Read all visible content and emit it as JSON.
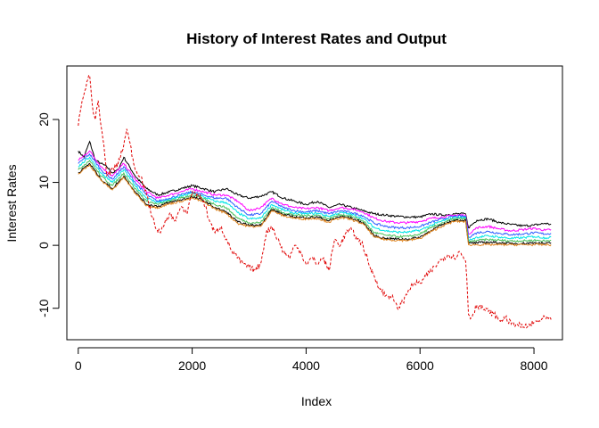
{
  "chart_data": {
    "type": "line",
    "title": "History of Interest Rates and Output",
    "xlabel": "Index",
    "ylabel": "Interest Rates",
    "xlim": [
      -200,
      8500
    ],
    "ylim": [
      -15,
      28.5
    ],
    "x_ticks": [
      0,
      2000,
      4000,
      6000,
      8000
    ],
    "y_ticks": [
      -10,
      0,
      10,
      20
    ],
    "x_tick_labels": [
      "0",
      "2000",
      "4000",
      "6000",
      "8000"
    ],
    "y_tick_labels": [
      "-10",
      "0",
      "10",
      "20"
    ],
    "grid": false,
    "legend": "none",
    "series": [
      {
        "color": "#000000",
        "style": "solid",
        "x": [
          0,
          100,
          200,
          300,
          400,
          500,
          600,
          700,
          800,
          900,
          1000,
          1200,
          1400,
          1600,
          1800,
          2000,
          2200,
          2400,
          2600,
          2800,
          3000,
          3200,
          3400,
          3600,
          3800,
          4000,
          4200,
          4400,
          4600,
          4800,
          5000,
          5200,
          5400,
          5600,
          5800,
          6000,
          6200,
          6400,
          6600,
          6800,
          6850,
          7000,
          7200,
          7400,
          7600,
          7800,
          8000,
          8200,
          8300
        ],
        "y": [
          15,
          14,
          16.5,
          13.5,
          13,
          12.5,
          11.5,
          12,
          14,
          12.5,
          11,
          9,
          8,
          8.5,
          9,
          9.5,
          9,
          8.5,
          9,
          8,
          7.5,
          7.8,
          8.5,
          7.5,
          7,
          6.5,
          7,
          6,
          6.5,
          6,
          5.5,
          5,
          4.8,
          4.6,
          4.5,
          4.5,
          5,
          4.8,
          5,
          5,
          2.8,
          4,
          4.2,
          3.6,
          3.3,
          3.1,
          3.2,
          3.5,
          3.3
        ]
      },
      {
        "color": "#ff00ff",
        "style": "solid",
        "x": [
          0,
          200,
          400,
          600,
          800,
          1000,
          1200,
          1400,
          1600,
          1800,
          2000,
          2200,
          2400,
          2600,
          2800,
          3000,
          3200,
          3400,
          3600,
          3800,
          4000,
          4200,
          4400,
          4600,
          4800,
          5000,
          5200,
          5400,
          5600,
          5800,
          6000,
          6200,
          6400,
          6600,
          6800,
          6850,
          7000,
          7200,
          7400,
          7600,
          7800,
          8000,
          8200,
          8300
        ],
        "y": [
          13.5,
          15,
          12.5,
          11,
          13,
          10.5,
          8.5,
          7.5,
          8,
          8.5,
          9,
          8.5,
          8,
          8,
          7,
          5.5,
          6,
          7.5,
          6.5,
          6,
          5.8,
          6,
          5.5,
          6,
          5.8,
          5.3,
          4.3,
          3.8,
          3.6,
          3.6,
          3.8,
          4.3,
          4.5,
          4.8,
          4.8,
          1.8,
          2.8,
          3,
          2.6,
          2.3,
          2.5,
          2.7,
          2.4,
          2.5
        ]
      },
      {
        "color": "#2f5dff",
        "style": "solid",
        "x": [
          0,
          200,
          400,
          600,
          800,
          1000,
          1200,
          1400,
          1600,
          1800,
          2000,
          2200,
          2400,
          2600,
          2800,
          3000,
          3200,
          3400,
          3600,
          3800,
          4000,
          4200,
          4400,
          4600,
          4800,
          5000,
          5200,
          5400,
          5600,
          5800,
          6000,
          6200,
          6400,
          6600,
          6800,
          6850,
          7000,
          7200,
          7400,
          7600,
          7800,
          8000,
          8200,
          8300
        ],
        "y": [
          13,
          14.5,
          12,
          10.5,
          12.5,
          10,
          8,
          7,
          7.5,
          8,
          8.5,
          8,
          7.5,
          7.5,
          6,
          4.8,
          5,
          7,
          6,
          5.5,
          5.3,
          5.5,
          5,
          5.5,
          5.2,
          4.7,
          3.5,
          3,
          2.8,
          2.8,
          3,
          3.7,
          4.2,
          4.6,
          4.6,
          1.3,
          2,
          2.2,
          1.9,
          1.7,
          1.8,
          2,
          1.8,
          1.9
        ]
      },
      {
        "color": "#00e5e5",
        "style": "solid",
        "x": [
          0,
          200,
          400,
          600,
          800,
          1000,
          1200,
          1400,
          1600,
          1800,
          2000,
          2200,
          2400,
          2600,
          2800,
          3000,
          3200,
          3400,
          3600,
          3800,
          4000,
          4200,
          4400,
          4600,
          4800,
          5000,
          5200,
          5400,
          5600,
          5800,
          6000,
          6200,
          6400,
          6600,
          6800,
          6850,
          7000,
          7200,
          7400,
          7600,
          7800,
          8000,
          8200,
          8300
        ],
        "y": [
          12.5,
          14,
          11.5,
          10,
          12,
          9.5,
          7.5,
          6.8,
          7.2,
          7.8,
          8.3,
          7.7,
          7,
          6.8,
          5.2,
          4.2,
          4.3,
          6.5,
          5.6,
          5.1,
          5,
          5.1,
          4.6,
          5.2,
          4.9,
          4.3,
          2.8,
          2.3,
          2.1,
          2.1,
          2.4,
          3.2,
          3.9,
          4.4,
          4.4,
          0.8,
          1.3,
          1.5,
          1.3,
          1.1,
          1.2,
          1.4,
          1.2,
          1.3
        ]
      },
      {
        "color": "#4bbf5a",
        "style": "solid",
        "x": [
          0,
          200,
          400,
          600,
          800,
          1000,
          1200,
          1400,
          1600,
          1800,
          2000,
          2200,
          2400,
          2600,
          2800,
          3000,
          3200,
          3400,
          3600,
          3800,
          4000,
          4200,
          4400,
          4600,
          4800,
          5000,
          5200,
          5400,
          5600,
          5800,
          6000,
          6200,
          6400,
          6600,
          6800,
          6850,
          7000,
          7200,
          7400,
          7600,
          7800,
          8000,
          8200,
          8300
        ],
        "y": [
          12,
          13.5,
          11,
          9.5,
          11.5,
          9,
          7,
          6.5,
          7,
          7.5,
          8,
          7.4,
          6.5,
          6,
          4.3,
          3.6,
          3.6,
          6,
          5.2,
          4.8,
          4.7,
          4.8,
          4.2,
          4.9,
          4.6,
          3.9,
          2,
          1.6,
          1.4,
          1.4,
          1.8,
          2.8,
          3.6,
          4.2,
          4.2,
          0.5,
          0.8,
          0.9,
          0.8,
          0.7,
          0.7,
          0.8,
          0.7,
          0.8
        ]
      },
      {
        "color": "#000000",
        "style": "solid",
        "x": [
          0,
          200,
          400,
          600,
          800,
          1000,
          1200,
          1400,
          1600,
          1800,
          2000,
          2200,
          2400,
          2600,
          2800,
          3000,
          3200,
          3400,
          3600,
          3800,
          4000,
          4200,
          4400,
          4600,
          4800,
          5000,
          5200,
          5400,
          5600,
          5800,
          6000,
          6200,
          6400,
          6600,
          6800,
          6850,
          7000,
          7200,
          7400,
          7600,
          7800,
          8000,
          8200,
          8300
        ],
        "y": [
          11.5,
          13,
          10.5,
          9,
          11,
          8.5,
          6.5,
          6.2,
          6.8,
          7.2,
          7.7,
          7.1,
          6,
          5.3,
          3.7,
          3.2,
          3.2,
          5.7,
          4.9,
          4.5,
          4.4,
          4.5,
          3.9,
          4.6,
          4.3,
          3.6,
          1.5,
          1.1,
          1,
          1,
          1.3,
          2.4,
          3.3,
          4,
          4,
          0.3,
          0.4,
          0.5,
          0.4,
          0.3,
          0.3,
          0.4,
          0.3,
          0.4
        ]
      },
      {
        "color": "#e0851f",
        "style": "solid",
        "x": [
          0,
          200,
          400,
          600,
          800,
          1000,
          1200,
          1400,
          1600,
          1800,
          2000,
          2200,
          2400,
          2600,
          2800,
          3000,
          3200,
          3400,
          3600,
          3800,
          4000,
          4200,
          4400,
          4600,
          4800,
          5000,
          5200,
          5400,
          5600,
          5800,
          6000,
          6200,
          6400,
          6600,
          6800,
          6850,
          7000,
          7200,
          7400,
          7600,
          7800,
          8000,
          8200,
          8300
        ],
        "y": [
          11.3,
          12.8,
          10.3,
          8.8,
          10.8,
          8.3,
          6.3,
          6,
          6.6,
          7,
          7.5,
          6.9,
          5.8,
          5.1,
          3.5,
          3,
          3,
          5.5,
          4.7,
          4.3,
          4.2,
          4.3,
          3.7,
          4.4,
          4.1,
          3.4,
          1.3,
          0.9,
          0.8,
          0.8,
          1.1,
          2.2,
          3.1,
          3.8,
          3.8,
          0.1,
          0.1,
          0.1,
          0.1,
          0.1,
          0.1,
          0.1,
          0.1,
          0.1
        ]
      },
      {
        "color": "#e00000",
        "style": "dashed",
        "x": [
          0,
          50,
          100,
          150,
          200,
          250,
          300,
          350,
          400,
          450,
          500,
          600,
          700,
          800,
          850,
          900,
          1000,
          1100,
          1200,
          1300,
          1400,
          1500,
          1600,
          1700,
          1800,
          1900,
          2000,
          2100,
          2200,
          2300,
          2400,
          2500,
          2600,
          2700,
          2800,
          2900,
          3000,
          3100,
          3200,
          3300,
          3400,
          3500,
          3600,
          3700,
          3800,
          3900,
          4000,
          4100,
          4200,
          4300,
          4400,
          4500,
          4600,
          4700,
          4800,
          4900,
          5000,
          5100,
          5200,
          5300,
          5400,
          5500,
          5600,
          5700,
          5800,
          5900,
          6000,
          6100,
          6200,
          6300,
          6400,
          6500,
          6600,
          6700,
          6800,
          6820,
          6850,
          6900,
          7000,
          7100,
          7200,
          7300,
          7400,
          7500,
          7600,
          7700,
          7800,
          7900,
          8000,
          8100,
          8200,
          8300
        ],
        "y": [
          19,
          22,
          24,
          26,
          27,
          22,
          20,
          23,
          19,
          16,
          11,
          12,
          13,
          16,
          18.5,
          16.5,
          12,
          11,
          8,
          4.5,
          2,
          3,
          5,
          4,
          6,
          5,
          8.5,
          8,
          7,
          4,
          2,
          3,
          1,
          -1,
          -2,
          -3,
          -3.5,
          -4,
          -3,
          2,
          3,
          1,
          -1,
          -2,
          0,
          -1,
          -3,
          -2,
          -3,
          -2,
          -4,
          1,
          0,
          2,
          2.5,
          1,
          0,
          -3,
          -5,
          -7,
          -8,
          -8,
          -10,
          -9,
          -7,
          -6,
          -6,
          -5,
          -4,
          -3,
          -2,
          -1.5,
          -2,
          -1,
          -2.5,
          -5,
          -11,
          -11.5,
          -9.5,
          -10,
          -10.5,
          -11,
          -12,
          -11.5,
          -12.5,
          -12.5,
          -13,
          -12.8,
          -12.3,
          -12,
          -11.5,
          -11.8
        ]
      }
    ]
  }
}
